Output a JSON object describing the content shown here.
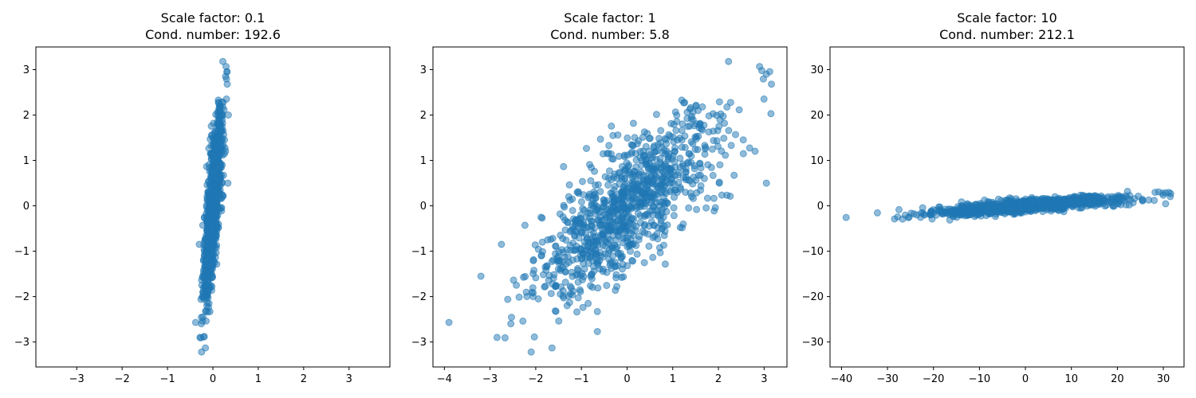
{
  "chart_data": [
    {
      "type": "scatter",
      "title_line1": "Scale factor: 0.1",
      "title_line2": "Cond. number: 192.6",
      "xlim": [
        -3.9,
        3.9
      ],
      "ylim": [
        -3.55,
        3.5
      ],
      "xticks": [
        -3,
        -2,
        -1,
        0,
        1,
        2,
        3
      ],
      "yticks": [
        -3,
        -2,
        -1,
        0,
        1,
        2,
        3
      ],
      "color": "#1f77b4",
      "points": {
        "n": 1000,
        "seed": 11,
        "rho": 0.73,
        "sx": 0.1,
        "sy": 1.0,
        "extra": [
          [
            0.22,
            3.18
          ],
          [
            0.31,
            2.95
          ],
          [
            0.28,
            2.85
          ],
          [
            -0.38,
            -2.57
          ],
          [
            -0.25,
            -3.22
          ],
          [
            -0.19,
            -2.88
          ],
          [
            0.34,
            2.0
          ],
          [
            0.33,
            0.5
          ],
          [
            -0.3,
            -0.85
          ],
          [
            -0.22,
            -2.45
          ]
        ]
      },
      "grid": false,
      "legend": "none"
    },
    {
      "type": "scatter",
      "title_line1": "Scale factor: 1",
      "title_line2": "Cond. number: 5.8",
      "xlim": [
        -4.25,
        3.5
      ],
      "ylim": [
        -3.55,
        3.5
      ],
      "xticks": [
        -4,
        -3,
        -2,
        -1,
        0,
        1,
        2,
        3
      ],
      "yticks": [
        -3,
        -2,
        -1,
        0,
        1,
        2,
        3
      ],
      "color": "#1f77b4",
      "points": {
        "n": 1000,
        "seed": 11,
        "rho": 0.73,
        "sx": 1.0,
        "sy": 1.0,
        "extra": [
          [
            -3.9,
            -2.57
          ],
          [
            -3.2,
            -1.55
          ],
          [
            -2.75,
            -0.85
          ],
          [
            2.22,
            3.18
          ],
          [
            2.95,
            2.98
          ],
          [
            3.05,
            2.9
          ],
          [
            3.15,
            2.03
          ],
          [
            3.05,
            0.5
          ],
          [
            -2.1,
            -3.22
          ],
          [
            -0.65,
            -2.77
          ]
        ]
      },
      "grid": false,
      "legend": "none"
    },
    {
      "type": "scatter",
      "title_line1": "Scale factor: 10",
      "title_line2": "Cond. number: 212.1",
      "xlim": [
        -42.5,
        34.5
      ],
      "ylim": [
        -35.5,
        35.0
      ],
      "xticks": [
        -40,
        -30,
        -20,
        -10,
        0,
        10,
        20,
        30
      ],
      "yticks": [
        -30,
        -20,
        -10,
        0,
        10,
        20,
        30
      ],
      "color": "#1f77b4",
      "points": {
        "n": 1000,
        "seed": 11,
        "rho": 0.73,
        "sx": 10.0,
        "sy": 1.0,
        "extra": [
          [
            -39.0,
            -2.57
          ],
          [
            -32.2,
            -1.55
          ],
          [
            -27.5,
            -0.85
          ],
          [
            -27.8,
            -2.45
          ],
          [
            28.2,
            2.97
          ],
          [
            30.5,
            2.85
          ],
          [
            31.5,
            2.03
          ],
          [
            30.5,
            0.45
          ],
          [
            22.2,
            3.18
          ],
          [
            25.5,
            1.1
          ]
        ]
      },
      "grid": false,
      "legend": "none"
    }
  ]
}
